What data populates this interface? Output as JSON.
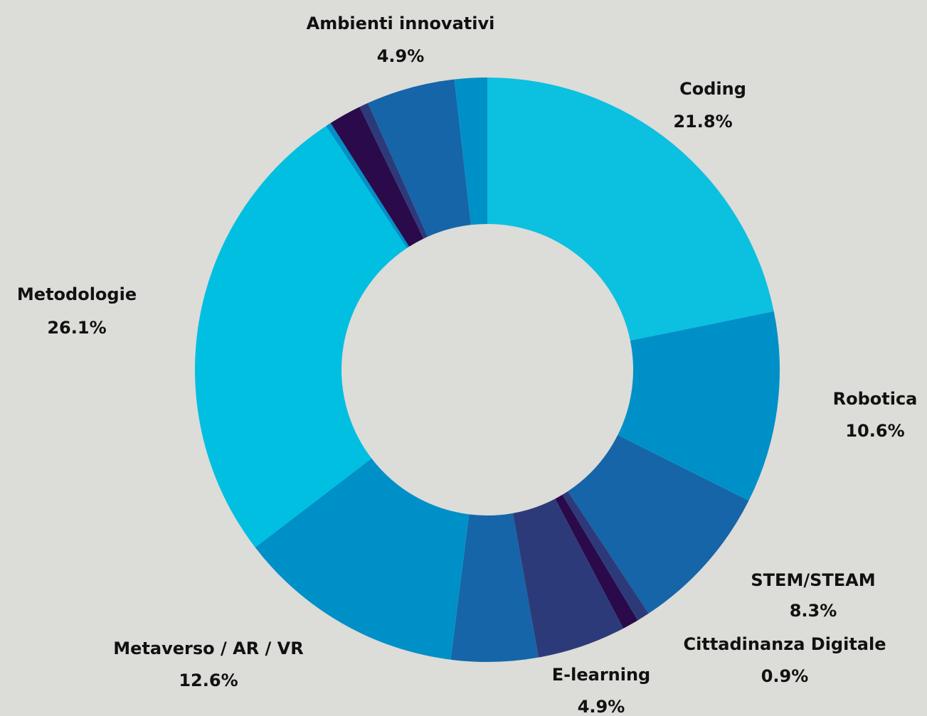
{
  "chart_data": {
    "type": "donut",
    "categories": [
      "Coding",
      "Robotica",
      "STEM/STEAM",
      null,
      "Cittadinanza Digitale",
      "E-learning",
      null,
      "Metaverso / AR / VR",
      "Metodologie",
      null,
      null,
      null,
      "Ambienti innovativi",
      null
    ],
    "values": [
      21.8,
      10.6,
      8.3,
      0.7,
      0.9,
      4.9,
      4.8,
      12.6,
      26.1,
      0.3,
      1.8,
      0.5,
      4.9,
      1.8
    ],
    "value_labels": [
      "21.8%",
      "10.6%",
      "8.3%",
      null,
      "0.9%",
      "4.9%",
      null,
      "12.6%",
      "26.1%",
      null,
      null,
      null,
      "4.9%",
      null
    ],
    "colors": [
      "#0cc0e0",
      "#0090c8",
      "#1565a8",
      "#2d3a7a",
      "#2a0a4a",
      "#2d3a7a",
      "#1565a8",
      "#0090c8",
      "#00bfe0",
      "#0090c8",
      "#2a0a4a",
      "#2d3a7a",
      "#1565a8",
      "#0090c8"
    ]
  }
}
